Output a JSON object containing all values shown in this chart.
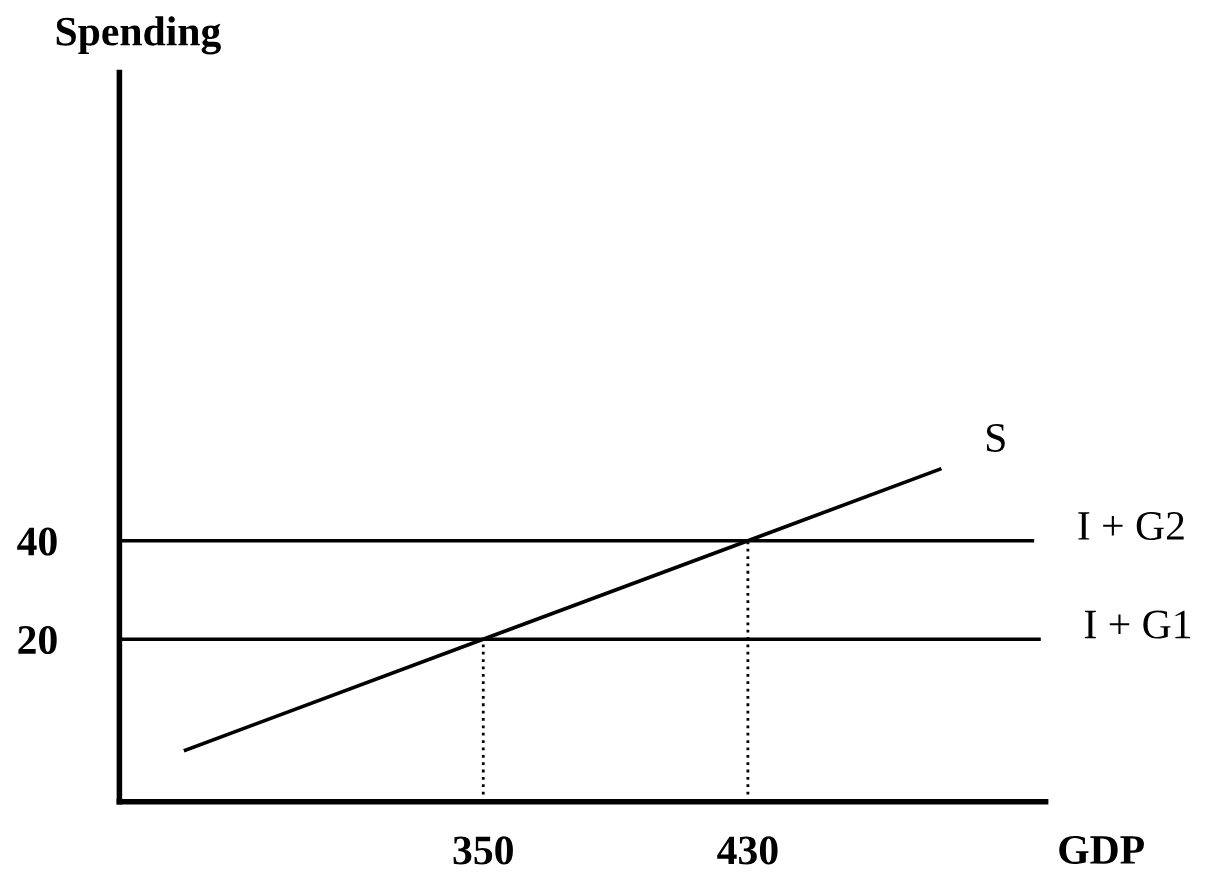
{
  "chart_data": {
    "type": "line",
    "xlabel": "GDP",
    "ylabel": "Spending",
    "xlim": [
      240,
      520
    ],
    "ylim": [
      -13,
      135
    ],
    "xticks": [
      350,
      430
    ],
    "yticks": [
      20,
      40
    ],
    "grid": false,
    "legend": false,
    "marker": "none",
    "series": [
      {
        "name": "S",
        "color": "#000000",
        "x": [
          260,
          488
        ],
        "values": [
          -2.5,
          54.5
        ],
        "line_style": "solid"
      },
      {
        "name": "I + G2",
        "color": "#000000",
        "x": [
          240,
          516
        ],
        "values": [
          40,
          40
        ],
        "line_style": "solid"
      },
      {
        "name": "I + G1",
        "color": "#000000",
        "x": [
          240,
          518
        ],
        "values": [
          20,
          20
        ],
        "line_style": "solid"
      },
      {
        "color": "#000000",
        "x": [
          350,
          350
        ],
        "values": [
          -13,
          20
        ],
        "line_style": "dotted"
      },
      {
        "color": "#000000",
        "x": [
          430,
          430
        ],
        "values": [
          -13,
          40
        ],
        "line_style": "dotted"
      }
    ]
  }
}
